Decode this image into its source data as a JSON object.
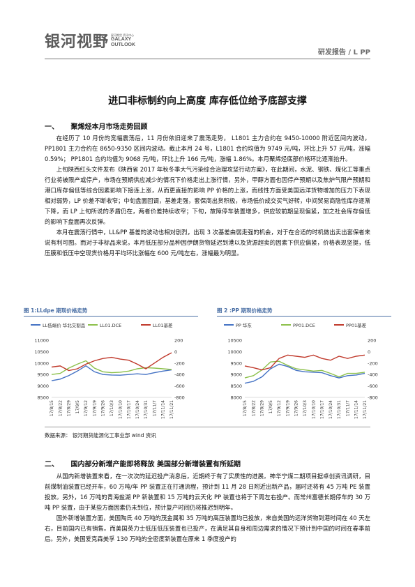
{
  "header": {
    "logo_cn": "银河视野",
    "logo_en_small": "星河期货 资讯中心",
    "logo_en_1": "GALAXY",
    "logo_en_2": "OUTLOOK",
    "report_type": "研发报告 / L PP"
  },
  "title": "进口非标制约向上高度  库存低位给予底部支撑",
  "section1": {
    "num": "一、",
    "title": "聚烯烃本月市场走势回顾",
    "paragraphs": [
      "在经历了 10 月份的宽幅震荡后，11 月份依旧迎来了震荡走势，  L1801 主力合约在 9450-10000 附近区间内波动，PP1801 主力合约在 8650-9350 区间内波动。截止本月 24 号，L1801 合约均值为 9749 元/吨，环比上升 57 元/吨，涨幅 0.59%；  PP1801 合约均值为 9068 元/吨，环比上升 166 元/吨，涨幅 1.86%。本月聚烯烃底部价格环比逐渐抬升。",
      "上旬陕西红头文件发布《陕西省 2017 年秋冬季大气污染综合治理攻坚行动方案》，在此期间，水泥、钢铁、煤化工等重点行业将被限产或停产，市场在预期供应减少的情况下价格走出上涨行情，另外，甲醇方面也因停产预期以及焦炉气限产预期和港口库存偏低等综合因素影响下接连上涨，从而更直接的影响 PP 价格的上涨，而线性方面受美国远洋货物增加的压力下表现相对弱势，LP 价差不断收窄；中旬盘面回调，基差走强，套保商出货积极，市场低价成交买气好转，中间贸易商隐性库存逐渐下降，而 LP 上旬所说的矛盾仍在，两者价差持续收窄；下旬，故障停车装置增多，供应较前期呈现偏紧，加之社会库存偏低的影响下盘面再次反弹。",
      "本月在震荡行情中，LL&PP 基差的波动也相对剧烈，出现 3 次基差由弱走强的机会，对于在合适的时机做出卖出套保者来说有利可图。而对于非标品来说，本月低压部分品种因伊朗货物延迟到港以及货源超卖的因素下供应偏紧，价格表现坚挺，低压膜和低压中空现货价格月平均环比涨幅在 600 元/吨左右，涨幅最为明显。"
    ]
  },
  "charts": {
    "left_title": "图 1:LLdpe 期现价格走势",
    "right_title": "图 2 :PP 期现价格走势"
  },
  "chart_data": [
    {
      "type": "line",
      "title": "图 1:LLdpe 期现价格走势",
      "categories": [
        "17/8/15",
        "17/8/22",
        "17/8/29",
        "17/9/5",
        "17/9/12",
        "17/9/19",
        "17/9/26",
        "17/10/3",
        "17/10/10",
        "17/10/17",
        "17/10/24",
        "17/10/31",
        "17/11/7",
        "17/11/14",
        "17/11/21"
      ],
      "series": [
        {
          "name": "LL低端价 华北交割品",
          "color": "#4472c4",
          "axis": "left",
          "values": [
            9230,
            9300,
            9450,
            9650,
            9880,
            9620,
            9500,
            9480,
            9470,
            9500,
            9530,
            9500,
            9580,
            9650,
            9700
          ]
        },
        {
          "name": "LL01.DCE",
          "color": "#8cc04a",
          "axis": "left",
          "values": [
            9500,
            9550,
            9780,
            9950,
            10100,
            9780,
            9620,
            9580,
            9600,
            9650,
            9750,
            9800,
            9780,
            9750,
            9720
          ]
        },
        {
          "name": "LL01基差",
          "color": "#c0392b",
          "axis": "right",
          "values": [
            -270,
            -250,
            -330,
            -300,
            -220,
            -160,
            -120,
            -100,
            -130,
            -150,
            -220,
            -300,
            -200,
            -100,
            -20
          ]
        }
      ],
      "yleft": [
        8500,
        11000
      ],
      "yleft_ticks": [
        8500,
        9000,
        9500,
        10000,
        10500,
        11000
      ],
      "yright": [
        -800,
        200
      ],
      "yright_ticks": [
        -800,
        -600,
        -400,
        -200,
        0,
        200
      ],
      "legend": "top"
    },
    {
      "type": "line",
      "title": "图 2 :PP 期现价格走势",
      "categories": [
        "17/8/15",
        "17/8/22",
        "17/8/29",
        "17/9/5",
        "17/9/12",
        "17/9/19",
        "17/9/26",
        "17/10/3",
        "17/10/10",
        "17/10/17",
        "17/10/24",
        "17/10/31",
        "17/11/7",
        "17/11/14",
        "17/11/21"
      ],
      "series": [
        {
          "name": "PP 华东",
          "color": "#4472c4",
          "axis": "left",
          "values": [
            8620,
            8700,
            8900,
            9250,
            9450,
            9350,
            9180,
            9120,
            9100,
            9080,
            8950,
            8850,
            8950,
            8980,
            9050
          ]
        },
        {
          "name": "PP01.DCE",
          "color": "#8cc04a",
          "axis": "left",
          "values": [
            8850,
            8950,
            9200,
            9550,
            9580,
            9400,
            9250,
            9200,
            9150,
            9180,
            9050,
            8900,
            9050,
            9050,
            9100
          ]
        },
        {
          "name": "PP01基差",
          "color": "#c0392b",
          "axis": "right",
          "values": [
            -250,
            -280,
            -320,
            -280,
            -120,
            -60,
            -80,
            -100,
            -60,
            -120,
            -150,
            -80,
            -120,
            -80,
            -60
          ]
        }
      ],
      "yleft": [
        8000,
        10500
      ],
      "yleft_ticks": [
        8000,
        8500,
        9000,
        9500,
        10000,
        10500
      ],
      "yright": [
        -800,
        200
      ],
      "yright_ticks": [
        -800,
        -600,
        -400,
        -200,
        0,
        200
      ],
      "legend": "top"
    }
  ],
  "source": "数据来源：   银河期货能源化工事业部    wind 资讯",
  "section2": {
    "num": "二、",
    "title": "国内部分新增产能即将释放   美国部分新增装置有所延期",
    "paragraphs": [
      "从国内新增装置来看，在一次次的延迟投产消息后，近期终于有了实质性的进展。神华宁煤二期项目据卓创资讯调研，目前煤制油装置已经开车，60 万吨/年 PP 装置正在打通流程，预计到 11 月 28 日附近出新产品，届时还将有 45 万吨 PE 装置投放。另外，16 万吨的青海盐湖 PP 新装置和 15 万吨的云天化 PP 装置也将于下周左右投产。而常州富德长期停车的 30 万吨 PP 装置，由于某些方面因素仍未到位，预计复产时间仍将推迟到明年。",
      "国外新增装置方面，美国陶氏 40 万吨的茂金属和 35 万吨的高压装置均已投放，来自美国的远洋货物到港时间在 40 天左右，目前国内已有销售。而美国英力士低压低压装置也已投产，在满足其自身和周边需求的情况下预计到中国的时间在春季前后。另外，美国爱克森美孚 130 万吨的全密度新装置在原来 1 季度投产的"
    ]
  }
}
